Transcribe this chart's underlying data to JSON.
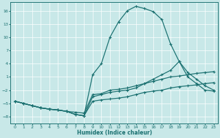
{
  "xlabel": "Humidex (Indice chaleur)",
  "bg_color": "#c8e8e8",
  "line_color": "#1a7070",
  "xlim": [
    -0.5,
    23.5
  ],
  "ylim": [
    -9.5,
    18
  ],
  "xticks": [
    0,
    1,
    2,
    3,
    4,
    5,
    6,
    7,
    8,
    9,
    10,
    11,
    12,
    13,
    14,
    15,
    16,
    17,
    18,
    19,
    20,
    21,
    22,
    23
  ],
  "yticks": [
    -8,
    -5,
    -2,
    1,
    4,
    7,
    10,
    13,
    16
  ],
  "line1_x": [
    0,
    1,
    2,
    3,
    4,
    5,
    6,
    7,
    8,
    9,
    10,
    11,
    12,
    13,
    14,
    15,
    16,
    17,
    18,
    19,
    20,
    21,
    22,
    23
  ],
  "line1_y": [
    -4.5,
    -5.0,
    -5.5,
    -6.0,
    -6.3,
    -6.5,
    -6.8,
    -7.5,
    -7.8,
    1.5,
    4.0,
    10.0,
    13.5,
    16.0,
    17.0,
    16.5,
    15.8,
    14.0,
    8.5,
    4.5,
    1.0,
    -0.5,
    -2.0,
    -2.2
  ],
  "line2_x": [
    0,
    1,
    2,
    3,
    4,
    5,
    6,
    7,
    8,
    9,
    10,
    11,
    12,
    13,
    14,
    15,
    16,
    17,
    18,
    19,
    20,
    21,
    22,
    23
  ],
  "line2_y": [
    -4.5,
    -5.0,
    -5.5,
    -6.0,
    -6.3,
    -6.5,
    -6.8,
    -7.5,
    -7.8,
    -3.5,
    -3.0,
    -2.5,
    -2.2,
    -2.0,
    -1.5,
    -0.5,
    0.5,
    1.5,
    2.5,
    4.5,
    2.0,
    0.5,
    -1.0,
    -2.0
  ],
  "line3_x": [
    0,
    1,
    2,
    3,
    4,
    5,
    6,
    7,
    8,
    9,
    10,
    11,
    12,
    13,
    14,
    15,
    16,
    17,
    18,
    19,
    20,
    21,
    22,
    23
  ],
  "line3_y": [
    -4.5,
    -5.0,
    -5.5,
    -6.0,
    -6.3,
    -6.5,
    -6.8,
    -7.5,
    -7.8,
    -4.5,
    -4.2,
    -4.0,
    -3.8,
    -3.5,
    -3.0,
    -2.5,
    -2.2,
    -2.0,
    -1.5,
    -1.2,
    -1.0,
    -0.8,
    -0.5,
    -0.3
  ],
  "line4_x": [
    0,
    1,
    2,
    3,
    4,
    5,
    6,
    7,
    8,
    9,
    10,
    11,
    12,
    13,
    14,
    15,
    16,
    17,
    18,
    19,
    20,
    21,
    22,
    23
  ],
  "line4_y": [
    -4.5,
    -5.0,
    -5.5,
    -6.0,
    -6.3,
    -6.5,
    -6.8,
    -7.0,
    -7.2,
    -3.0,
    -2.8,
    -2.0,
    -1.8,
    -1.5,
    -1.0,
    -0.5,
    0.0,
    0.5,
    1.0,
    1.2,
    1.5,
    1.8,
    2.0,
    2.2
  ]
}
